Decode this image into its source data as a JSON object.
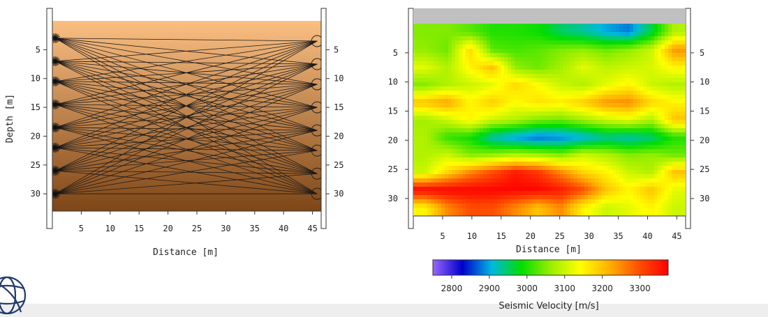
{
  "colors": {
    "medium_top": "#fbbf82",
    "medium_bottom": "#7e4617",
    "ray": "#1a1a1a",
    "frame_gray": "#c0c0c0",
    "background_bar": "#eeeeee",
    "logo": "#1f3a6e"
  },
  "icons": [
    "source-starburst-icon",
    "receiver-circle-icon",
    "logo-globe-icon"
  ],
  "chart_data": [
    {
      "type": "ray-diagram",
      "title": "",
      "xlabel": "Distance [m]",
      "ylabel": "Depth [m]",
      "xlim": [
        0,
        46.5
      ],
      "ylim": [
        0,
        33
      ],
      "y_inverted": true,
      "x_ticks": [
        5,
        10,
        15,
        20,
        25,
        30,
        35,
        40,
        45
      ],
      "y_ticks": [
        5,
        10,
        15,
        20,
        25,
        30
      ],
      "grid": false,
      "source_x": 0.5,
      "source_depths": [
        3,
        7,
        10.5,
        14.5,
        18.5,
        22,
        26,
        30
      ],
      "receiver_x": 45.8,
      "receiver_depths": [
        3.5,
        7.5,
        11,
        15,
        19,
        22.5,
        26.5,
        30
      ]
    },
    {
      "type": "heatmap",
      "title": "",
      "xlabel": "Distance [m]",
      "ylabel": "",
      "xlim": [
        0,
        46.5
      ],
      "ylim": [
        0,
        33
      ],
      "y_inverted": true,
      "x_ticks": [
        5,
        10,
        15,
        20,
        25,
        30,
        35,
        40,
        45
      ],
      "y_ticks": [
        5,
        10,
        15,
        20,
        25,
        30
      ],
      "grid": false,
      "colorbar": {
        "label": "Seismic Velocity [m/s]",
        "ticks": [
          2800,
          2900,
          3000,
          3100,
          3200,
          3300
        ],
        "range": [
          2750,
          3375
        ],
        "colors": [
          "#9966ff",
          "#0000cc",
          "#00b8e0",
          "#00dd00",
          "#99ee00",
          "#ffff00",
          "#ffb000",
          "#ff5000",
          "#ff0000"
        ]
      },
      "velocity_rows": [
        {
          "depth": 1.5,
          "values": [
            3050,
            3050,
            3030,
            3000,
            3000,
            2990,
            2950,
            2930,
            2900,
            2880,
            2960,
            3080
          ]
        },
        {
          "depth": 4.5,
          "values": [
            3060,
            3040,
            3180,
            3030,
            3020,
            3030,
            3050,
            3060,
            3040,
            3060,
            3100,
            3240
          ]
        },
        {
          "depth": 7.5,
          "values": [
            3120,
            3080,
            3150,
            3200,
            3060,
            3040,
            3070,
            3120,
            3090,
            3100,
            3110,
            3150
          ]
        },
        {
          "depth": 10.5,
          "values": [
            3050,
            3080,
            3100,
            3120,
            3180,
            3140,
            3100,
            3080,
            3120,
            3150,
            3100,
            3080
          ]
        },
        {
          "depth": 13.5,
          "values": [
            3200,
            3230,
            3150,
            3190,
            3140,
            3170,
            3160,
            3190,
            3240,
            3250,
            3180,
            3150
          ]
        },
        {
          "depth": 16.5,
          "values": [
            3070,
            3100,
            3150,
            3100,
            3080,
            3050,
            3040,
            3070,
            3100,
            3120,
            3080,
            3200
          ]
        },
        {
          "depth": 19.5,
          "values": [
            3080,
            3010,
            2990,
            2920,
            2890,
            2870,
            2880,
            2900,
            2930,
            2920,
            2940,
            3000
          ]
        },
        {
          "depth": 22.5,
          "values": [
            3080,
            3100,
            3050,
            3060,
            3080,
            3070,
            3050,
            3100,
            3080,
            3050,
            3060,
            3040
          ]
        },
        {
          "depth": 25.5,
          "values": [
            3100,
            3180,
            3250,
            3300,
            3350,
            3320,
            3250,
            3180,
            3150,
            3100,
            3080,
            3200
          ]
        },
        {
          "depth": 28.5,
          "values": [
            3370,
            3370,
            3370,
            3370,
            3370,
            3370,
            3350,
            3300,
            3200,
            3150,
            3200,
            3120
          ]
        },
        {
          "depth": 31.5,
          "values": [
            3150,
            3250,
            3300,
            3300,
            3250,
            3200,
            3250,
            3150,
            3100,
            3120,
            3150,
            3100
          ]
        }
      ]
    }
  ]
}
